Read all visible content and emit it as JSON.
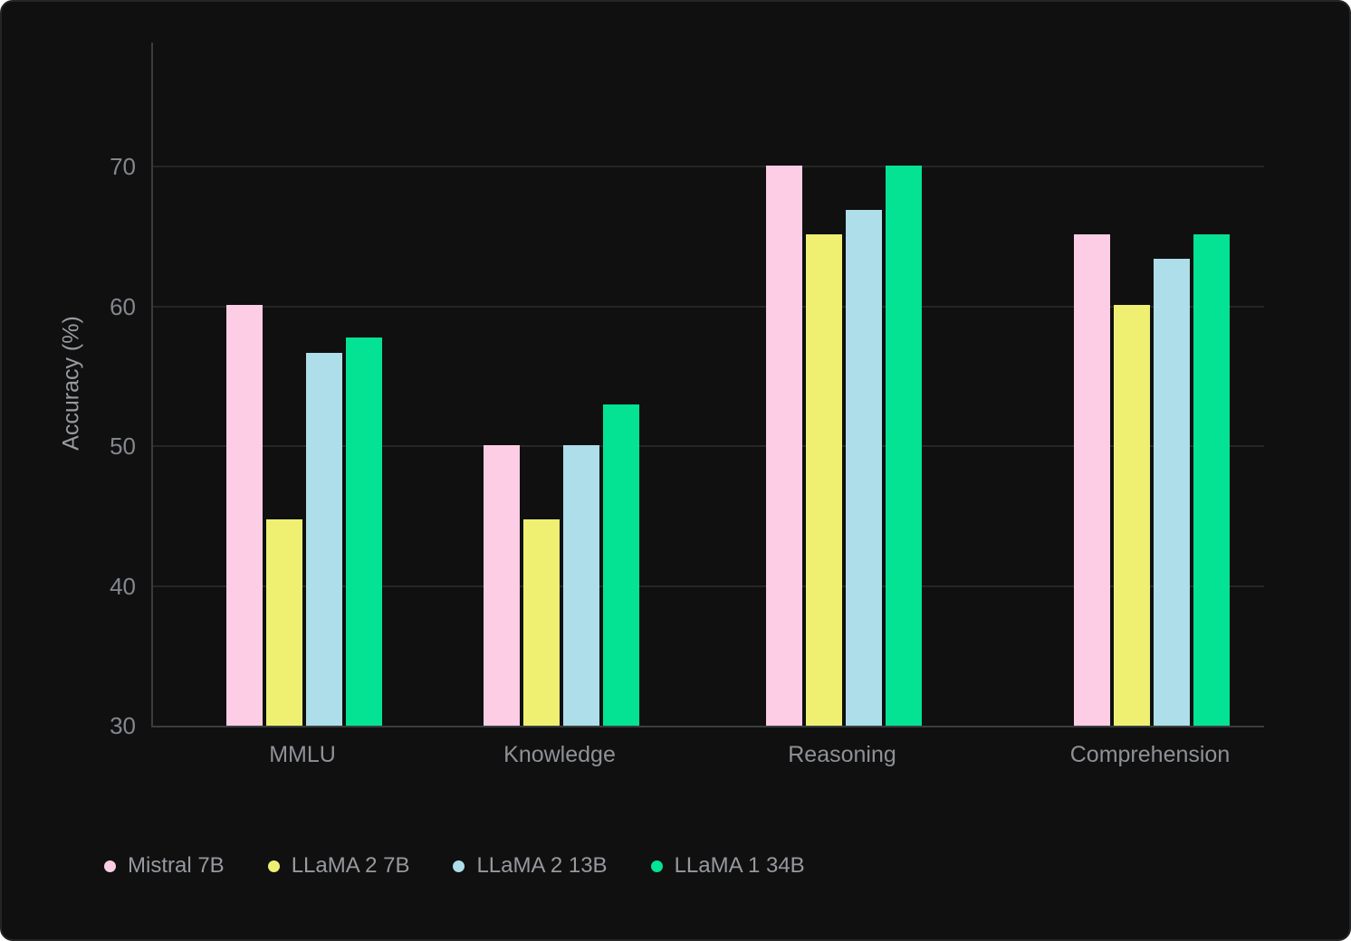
{
  "chart_data": {
    "type": "bar",
    "title": "",
    "xlabel": "",
    "ylabel": "Accuracy (%)",
    "ylim": [
      30,
      78.9
    ],
    "yticks": [
      30,
      40,
      50,
      60,
      70
    ],
    "grid": true,
    "legend_position": "bottom-left",
    "categories": [
      "MMLU",
      "Knowledge",
      "Reasoning",
      "Comprehension"
    ],
    "series": [
      {
        "name": "Mistral 7B",
        "color": "#fccde4",
        "values": [
          60.1,
          50.1,
          70.1,
          65.2
        ]
      },
      {
        "name": "LLaMA 2 7B",
        "color": "#eff072",
        "values": [
          44.8,
          44.8,
          65.2,
          60.1
        ]
      },
      {
        "name": "LLaMA 2 13B",
        "color": "#addee9",
        "values": [
          56.7,
          50.1,
          66.9,
          63.4
        ]
      },
      {
        "name": "LLaMA 1 34B",
        "color": "#04e294",
        "values": [
          57.8,
          53.0,
          70.1,
          65.2
        ]
      }
    ],
    "colors": {
      "background": "#0f100f",
      "gridline": "#242724",
      "axis_line": "#3a3c40",
      "tick_text": "#85878e",
      "category_text": "#8f9197",
      "legend_text": "#97999f"
    }
  }
}
